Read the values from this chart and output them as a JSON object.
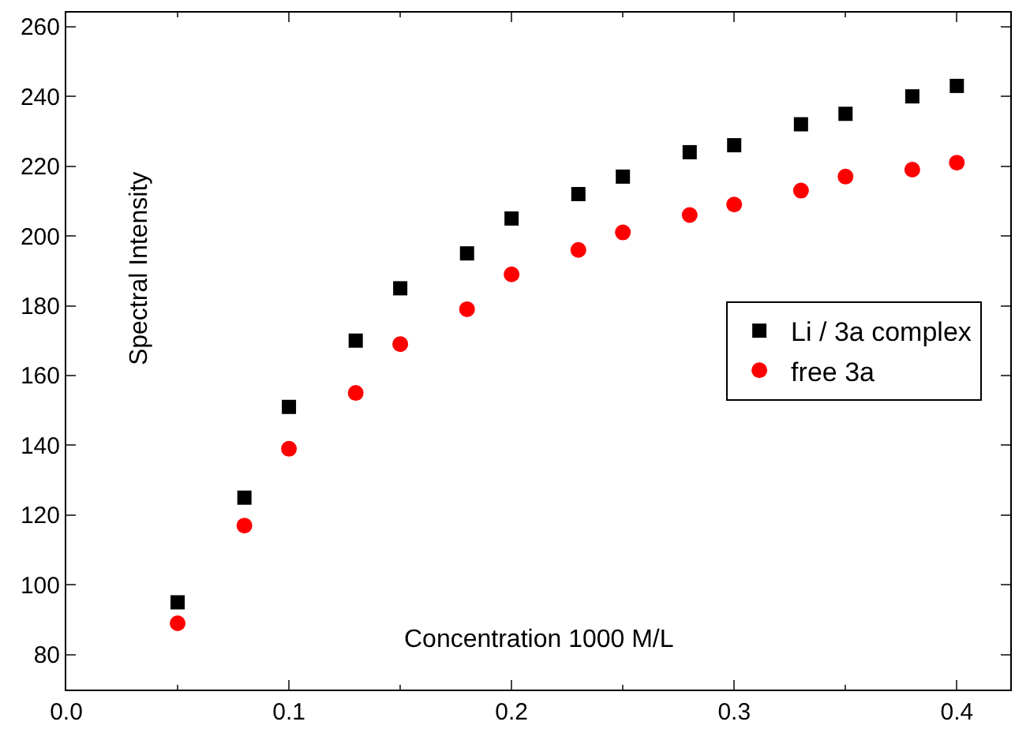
{
  "chart_data": {
    "type": "scatter",
    "xlabel": "Concentration 1000 M/L",
    "ylabel": "Spectral Intensity",
    "xlim": [
      0.0,
      0.424
    ],
    "xticks": [
      {
        "value": 0,
        "label": "0.0"
      },
      0.1,
      0.2,
      0.3,
      0.4
    ],
    "ylim": [
      70,
      264
    ],
    "yticks": [
      80,
      100,
      120,
      140,
      160,
      180,
      200,
      220,
      240,
      260
    ],
    "grid": false,
    "legend": "right",
    "series": [
      {
        "name": "Li / 3a complex",
        "color": "#000000",
        "marker": "square",
        "x": [
          0.05,
          0.08,
          0.1,
          0.13,
          0.15,
          0.18,
          0.2,
          0.23,
          0.25,
          0.28,
          0.3,
          0.33,
          0.35,
          0.38,
          0.4
        ],
        "values": [
          95,
          125,
          151,
          170,
          185,
          195,
          205,
          212,
          217,
          224,
          226,
          232,
          235,
          240,
          243
        ]
      },
      {
        "name": "free 3a",
        "color": "#ff0000",
        "marker": "circle",
        "x": [
          0.05,
          0.08,
          0.1,
          0.13,
          0.15,
          0.18,
          0.2,
          0.23,
          0.25,
          0.28,
          0.3,
          0.33,
          0.35,
          0.38,
          0.4
        ],
        "values": [
          89,
          117,
          139,
          155,
          169,
          179,
          189,
          196,
          201,
          206,
          209,
          213,
          217,
          219,
          221
        ]
      }
    ]
  }
}
